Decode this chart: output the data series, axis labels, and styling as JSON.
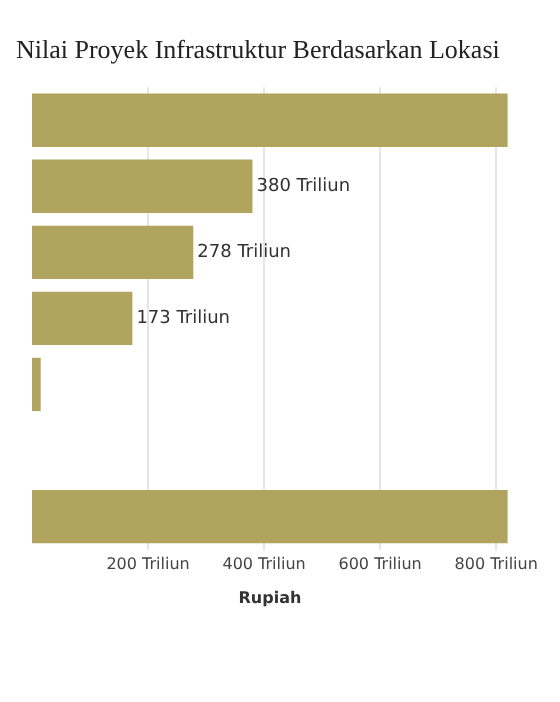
{
  "chart_data": {
    "type": "bar",
    "orientation": "horizontal",
    "title": "Nilai Proyek Infrastruktur Berdasarkan Lokasi",
    "xlabel": "Rupiah",
    "categories": [
      null,
      null,
      null,
      null,
      null,
      null,
      null
    ],
    "values": [
      820,
      380,
      278,
      173,
      15,
      null,
      820
    ],
    "value_labels": [
      null,
      "380 Triliun",
      "278 Triliun",
      "173 Triliun",
      null,
      null,
      null
    ],
    "color": "#b1a45f",
    "xlim": [
      0,
      820
    ],
    "xticks": [
      {
        "value": 200,
        "label": "200 Triliun"
      },
      {
        "value": 400,
        "label": "400 Triliun"
      },
      {
        "value": 600,
        "label": "600 Triliun"
      },
      {
        "value": 800,
        "label": "800 Triliun"
      }
    ],
    "grid": "x",
    "tick_labels": "x",
    "legend": false
  }
}
